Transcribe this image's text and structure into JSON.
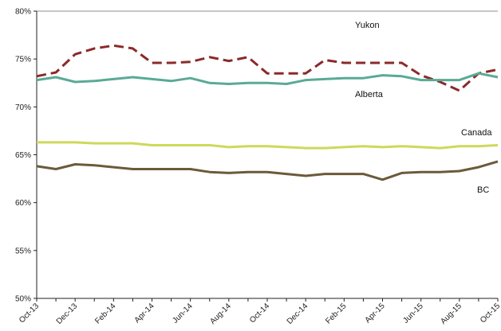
{
  "chart_data": {
    "type": "line",
    "title": "",
    "xlabel": "",
    "ylabel": "",
    "ylim": [
      50,
      80
    ],
    "yticks": [
      50,
      55,
      60,
      65,
      70,
      75,
      80
    ],
    "ytick_suffix": "%",
    "grid": false,
    "legend": "none",
    "x": [
      "Oct-13",
      "Nov-13",
      "Dec-13",
      "Jan-14",
      "Feb-14",
      "Mar-14",
      "Apr-14",
      "May-14",
      "Jun-14",
      "Jul-14",
      "Aug-14",
      "Sep-14",
      "Oct-14",
      "Nov-14",
      "Dec-14",
      "Jan-15",
      "Feb-15",
      "Mar-15",
      "Apr-15",
      "May-15",
      "Jun-15",
      "Jul-15",
      "Aug-15",
      "Sep-15",
      "Oct-15"
    ],
    "xtick_labels": [
      "Oct-13",
      "Dec-13",
      "Feb-14",
      "Apr-14",
      "Jun-14",
      "Aug-14",
      "Oct-14",
      "Dec-14",
      "Feb-15",
      "Apr-15",
      "Jun-15",
      "Aug-15",
      "Oct-15"
    ],
    "series": [
      {
        "name": "Yukon",
        "color": "#8b2a2a",
        "dash": true,
        "values": [
          73.2,
          73.6,
          75.5,
          76.1,
          76.4,
          76.1,
          74.6,
          74.6,
          74.7,
          75.2,
          74.8,
          75.2,
          73.5,
          73.5,
          73.5,
          74.9,
          74.6,
          74.6,
          74.6,
          74.6,
          73.3,
          72.6,
          71.7,
          73.5,
          73.9
        ]
      },
      {
        "name": "Alberta",
        "color": "#5aaa96",
        "dash": false,
        "values": [
          72.8,
          73.1,
          72.6,
          72.7,
          72.9,
          73.1,
          72.9,
          72.7,
          73.0,
          72.5,
          72.4,
          72.5,
          72.5,
          72.4,
          72.8,
          72.9,
          73.0,
          73.0,
          73.3,
          73.2,
          72.8,
          72.8,
          72.8,
          73.5,
          73.1
        ]
      },
      {
        "name": "Canada",
        "color": "#cfd85a",
        "dash": false,
        "values": [
          66.3,
          66.3,
          66.3,
          66.2,
          66.2,
          66.2,
          66.0,
          66.0,
          66.0,
          66.0,
          65.8,
          65.9,
          65.9,
          65.8,
          65.7,
          65.7,
          65.8,
          65.9,
          65.8,
          65.9,
          65.8,
          65.7,
          65.9,
          65.9,
          66.0
        ]
      },
      {
        "name": "BC",
        "color": "#6b5a3a",
        "dash": false,
        "values": [
          63.8,
          63.5,
          64.0,
          63.9,
          63.7,
          63.5,
          63.5,
          63.5,
          63.5,
          63.2,
          63.1,
          63.2,
          63.2,
          63.0,
          62.8,
          63.0,
          63.0,
          63.0,
          62.4,
          63.1,
          63.2,
          63.2,
          63.3,
          63.7,
          64.3
        ]
      }
    ]
  }
}
